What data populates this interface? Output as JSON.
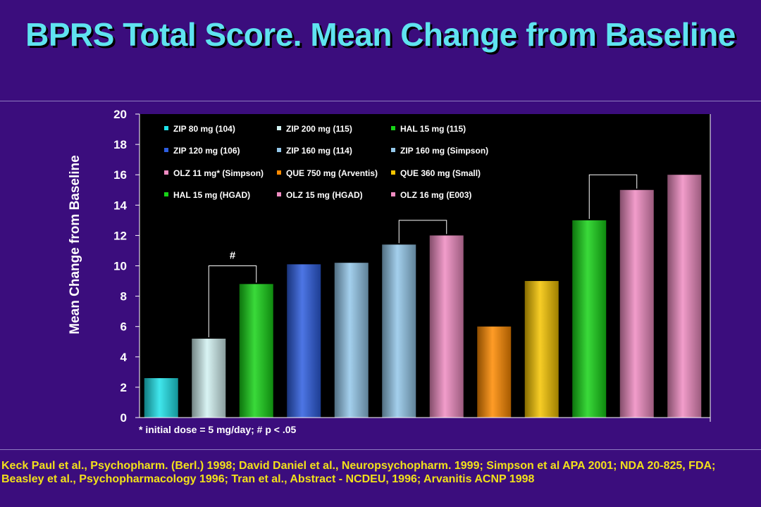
{
  "slide": {
    "title": "BPRS Total Score. Mean Change from Baseline",
    "citation": "Keck Paul et al., Psychopharm. (Berl.) 1998; David Daniel et al., Neuropsychopharm. 1999; Simpson et al APA 2001; NDA 20-825, FDA; Beasley et al., Psychopharmacology 1996; Tran et al., Abstract - NCDEU, 1996; Arvanitis ACNP 1998"
  },
  "colors": {
    "background": "#3b0d7d",
    "plot_area": "#000000",
    "title": "#5fe3f0",
    "citation": "#f2e01a"
  },
  "chart_data": {
    "type": "bar",
    "ylabel": "Mean Change from Baseline",
    "ylim": [
      0,
      20
    ],
    "yticks": [
      0,
      2,
      4,
      6,
      8,
      10,
      12,
      14,
      16,
      18,
      20
    ],
    "grid": false,
    "legend_position": "top-left inside plot",
    "footnote": "* initial dose = 5 mg/day; # p < .05",
    "categories": [
      "ZIP 80 mg (104)",
      "ZIP 200 mg (115)",
      "HAL 15 mg (115)",
      "ZIP 120 mg (106)",
      "ZIP 160 mg (114)",
      "ZIP 160 mg (Simpson)",
      "OLZ 11 mg* (Simpson)",
      "QUE 750 mg (Arventis)",
      "QUE 360 mg (Small)",
      "HAL 15 mg (HGAD)",
      "OLZ 15 mg (HGAD)",
      "OLZ 16 mg (E003)"
    ],
    "values": [
      2.6,
      5.2,
      8.8,
      10.1,
      10.2,
      11.4,
      12.0,
      6.0,
      9.0,
      13.0,
      15.0,
      16.0
    ],
    "bar_colors": [
      "#1fe3ea",
      "#d2f2f2",
      "#17d317",
      "#2d5ee0",
      "#94c8ea",
      "#94c8ea",
      "#f08cc2",
      "#ff8a00",
      "#f5c400",
      "#17d317",
      "#f08cc2",
      "#f08cc2"
    ],
    "brackets": [
      {
        "from": 1,
        "to": 2,
        "level": 10,
        "label": "#"
      },
      {
        "from": 5,
        "to": 6,
        "level": 13,
        "label": ""
      },
      {
        "from": 9,
        "to": 10,
        "level": 16,
        "label": ""
      }
    ]
  }
}
